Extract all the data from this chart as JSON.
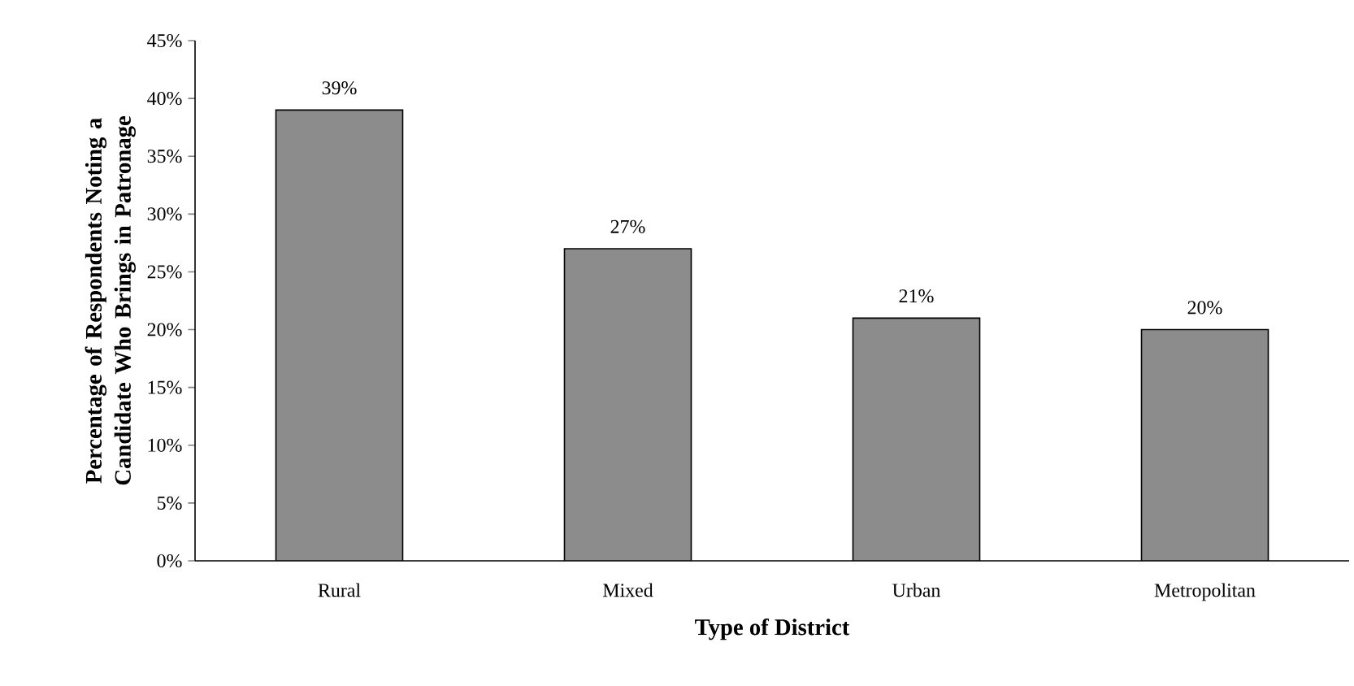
{
  "chart_data": {
    "type": "bar",
    "xlabel": "Type of District",
    "ylabel": "Percentage of Respondents Noting a Candidate Who Brings in Patronage",
    "categories": [
      "Rural",
      "Mixed",
      "Urban",
      "Metropolitan"
    ],
    "values": [
      39,
      27,
      21,
      20
    ],
    "value_labels": [
      "39%",
      "27%",
      "21%",
      "20%"
    ],
    "color": "#8c8c8c",
    "ylim": [
      0,
      45
    ],
    "yticks": [
      {
        "value": 0,
        "label": "0%"
      },
      {
        "value": 5,
        "label": "5%"
      },
      {
        "value": 10,
        "label": "10%"
      },
      {
        "value": 15,
        "label": "15%"
      },
      {
        "value": 20,
        "label": "20%"
      },
      {
        "value": 25,
        "label": "25%"
      },
      {
        "value": 30,
        "label": "30%"
      },
      {
        "value": 35,
        "label": "35%"
      },
      {
        "value": 40,
        "label": "40%"
      },
      {
        "value": 45,
        "label": "45%"
      }
    ],
    "grid": false
  }
}
